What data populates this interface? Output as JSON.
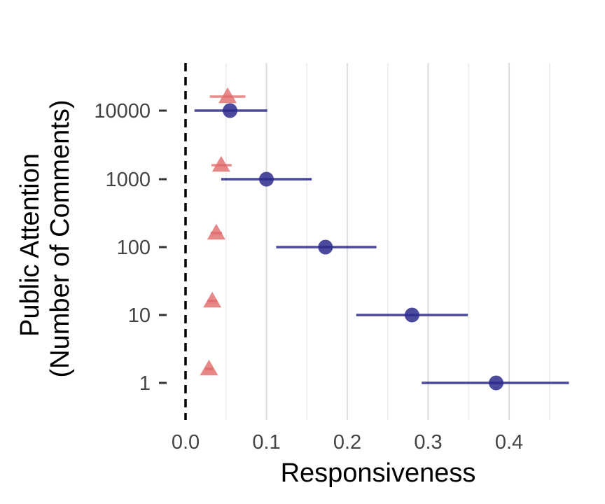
{
  "chart_data": {
    "type": "scatter",
    "title": "",
    "xlabel": "Responsiveness",
    "ylabel_lines": [
      "Public Attention",
      "(Number of Comments)"
    ],
    "xlim": [
      0.0,
      0.475
    ],
    "x_ticks": [
      "0.0",
      "0.1",
      "0.2",
      "0.3",
      "0.4"
    ],
    "categories": [
      "1",
      "10",
      "100",
      "1000",
      "10000"
    ],
    "reference_line_x": 0.0,
    "grid": "vertical",
    "series": [
      {
        "marker": "circle",
        "color": "#2b2a8c",
        "points": [
          {
            "category": "1",
            "x": 0.384,
            "low": 0.292,
            "high": 0.474
          },
          {
            "category": "10",
            "x": 0.28,
            "low": 0.211,
            "high": 0.349
          },
          {
            "category": "100",
            "x": 0.173,
            "low": 0.112,
            "high": 0.236
          },
          {
            "category": "1000",
            "x": 0.1,
            "low": 0.044,
            "high": 0.156
          },
          {
            "category": "10000",
            "x": 0.055,
            "low": 0.011,
            "high": 0.101
          }
        ]
      },
      {
        "marker": "triangle",
        "color": "#e06666",
        "points": [
          {
            "category": "1",
            "x": 0.029,
            "low": 0.024,
            "high": 0.034
          },
          {
            "category": "10",
            "x": 0.033,
            "low": 0.027,
            "high": 0.039
          },
          {
            "category": "100",
            "x": 0.038,
            "low": 0.031,
            "high": 0.045
          },
          {
            "category": "1000",
            "x": 0.044,
            "low": 0.032,
            "high": 0.057
          },
          {
            "category": "10000",
            "x": 0.052,
            "low": 0.03,
            "high": 0.074
          }
        ]
      }
    ]
  }
}
